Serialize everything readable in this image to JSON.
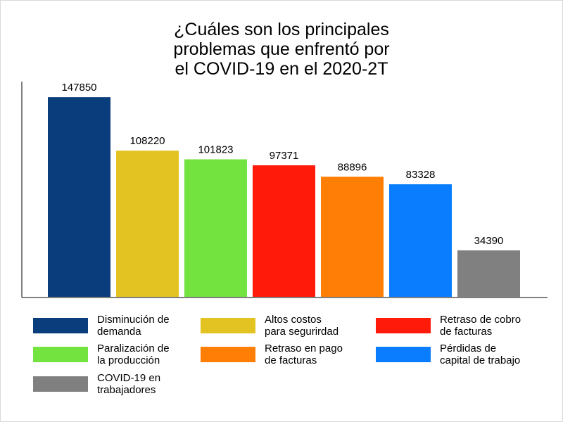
{
  "chart_data": {
    "type": "bar",
    "title_lines": [
      "¿Cuáles son los principales",
      "problemas que enfrentó por",
      "el COVID-19 en el 2020-2T"
    ],
    "ylim": [
      0,
      150000
    ],
    "grid": false,
    "legend_placement": "bottom",
    "series": [
      {
        "legend_lines": [
          "Disminución de",
          "demanda"
        ],
        "value": 147850,
        "label": "147850",
        "color": "#0a3d7c"
      },
      {
        "legend_lines": [
          "Altos costos",
          "para segurirdad"
        ],
        "value": 108220,
        "label": "108220",
        "color": "#e3c322"
      },
      {
        "legend_lines": [
          "Retraso de cobro",
          "de facturas"
        ],
        "value": 97371,
        "label": "97371",
        "color": "#ff1a0a"
      },
      {
        "legend_lines": [
          "Paralización de",
          "la producción"
        ],
        "value": 101823,
        "label": "101823",
        "color": "#72e33f"
      },
      {
        "legend_lines": [
          "Retraso en pago",
          "de facturas"
        ],
        "value": 88896,
        "label": "88896",
        "color": "#ff7e05"
      },
      {
        "legend_lines": [
          "Pérdidas de",
          "capital de trabajo"
        ],
        "value": 83328,
        "label": "83328",
        "color": "#0a7dff"
      },
      {
        "legend_lines": [
          "COVID-19 en",
          "trabajadores"
        ],
        "value": 34390,
        "label": "34390",
        "color": "#808080"
      }
    ]
  }
}
